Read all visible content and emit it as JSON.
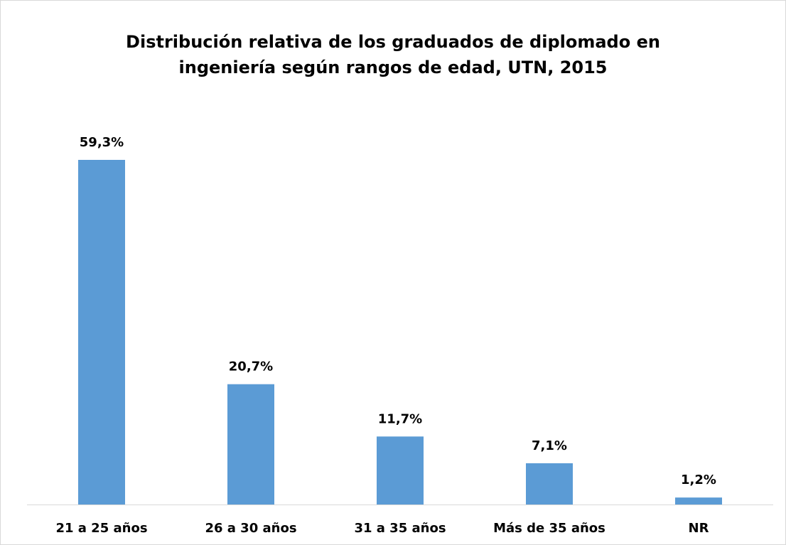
{
  "chart_data": {
    "type": "bar",
    "title": [
      "Distribución relativa de los graduados de diplomado en",
      "ingeniería según rangos de edad, UTN, 2015"
    ],
    "categories": [
      "21 a 25 años",
      "26 a 30 años",
      "31 a 35 años",
      "Más de 35 años",
      "NR"
    ],
    "values": [
      59.3,
      20.7,
      11.7,
      7.1,
      1.2
    ],
    "value_labels": [
      "59,3%",
      "20,7%",
      "11,7%",
      "7,1%",
      "1,2%"
    ],
    "color": "#5b9bd5"
  }
}
